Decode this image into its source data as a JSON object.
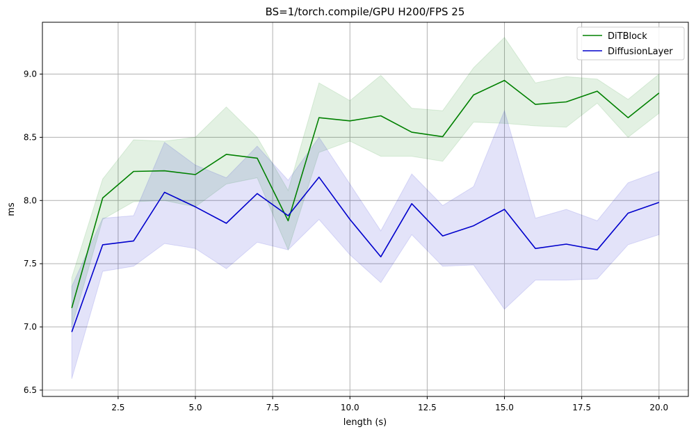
{
  "chart_data": {
    "type": "line",
    "title": "BS=1/torch.compile/GPU H200/FPS 25",
    "xlabel": "length (s)",
    "ylabel": "ms",
    "xlim": [
      0.05,
      20.95
    ],
    "ylim": [
      6.45,
      9.41
    ],
    "x_ticks": [
      2.5,
      5.0,
      7.5,
      10.0,
      12.5,
      15.0,
      17.5,
      20.0
    ],
    "x_tick_labels": [
      "2.5",
      "5.0",
      "7.5",
      "10.0",
      "12.5",
      "15.0",
      "17.5",
      "20.0"
    ],
    "y_ticks": [
      6.5,
      7.0,
      7.5,
      8.0,
      8.5,
      9.0
    ],
    "y_tick_labels": [
      "6.5",
      "7.0",
      "7.5",
      "8.0",
      "8.5",
      "9.0"
    ],
    "grid": true,
    "legend_position": "top-right",
    "x": [
      1,
      2,
      3,
      4,
      5,
      6,
      7,
      8,
      9,
      10,
      11,
      12,
      13,
      14,
      15,
      16,
      17,
      18,
      19,
      20
    ],
    "series": [
      {
        "name": "DiTBlock",
        "color": "#008000",
        "values": [
          7.15,
          8.02,
          8.23,
          8.235,
          8.205,
          8.365,
          8.335,
          7.84,
          8.655,
          8.63,
          8.67,
          8.54,
          8.505,
          8.835,
          8.95,
          8.76,
          8.78,
          8.865,
          8.655,
          8.85
        ],
        "lower": [
          7.0,
          7.85,
          7.99,
          8.0,
          7.95,
          8.13,
          8.18,
          7.61,
          8.38,
          8.47,
          8.35,
          8.35,
          8.31,
          8.62,
          8.61,
          8.59,
          8.58,
          8.77,
          8.5,
          8.69
        ],
        "upper": [
          7.39,
          8.17,
          8.48,
          8.47,
          8.5,
          8.74,
          8.5,
          8.08,
          8.93,
          8.79,
          8.99,
          8.73,
          8.71,
          9.05,
          9.29,
          8.93,
          8.98,
          8.96,
          8.8,
          9.0
        ]
      },
      {
        "name": "DiffusionLayer",
        "color": "#0000cc",
        "values": [
          6.96,
          7.65,
          7.68,
          8.065,
          7.95,
          7.82,
          8.055,
          7.88,
          8.185,
          7.85,
          7.555,
          7.975,
          7.72,
          7.8,
          7.93,
          7.62,
          7.655,
          7.61,
          7.9,
          7.985
        ],
        "lower": [
          6.59,
          7.44,
          7.48,
          7.66,
          7.62,
          7.46,
          7.67,
          7.61,
          7.85,
          7.57,
          7.35,
          7.73,
          7.48,
          7.49,
          7.14,
          7.37,
          7.37,
          7.38,
          7.65,
          7.73
        ],
        "upper": [
          7.32,
          7.86,
          7.88,
          8.46,
          8.28,
          8.18,
          8.43,
          8.16,
          8.5,
          8.13,
          7.76,
          8.21,
          7.96,
          8.11,
          8.71,
          7.86,
          7.93,
          7.84,
          8.14,
          8.23
        ]
      }
    ]
  }
}
